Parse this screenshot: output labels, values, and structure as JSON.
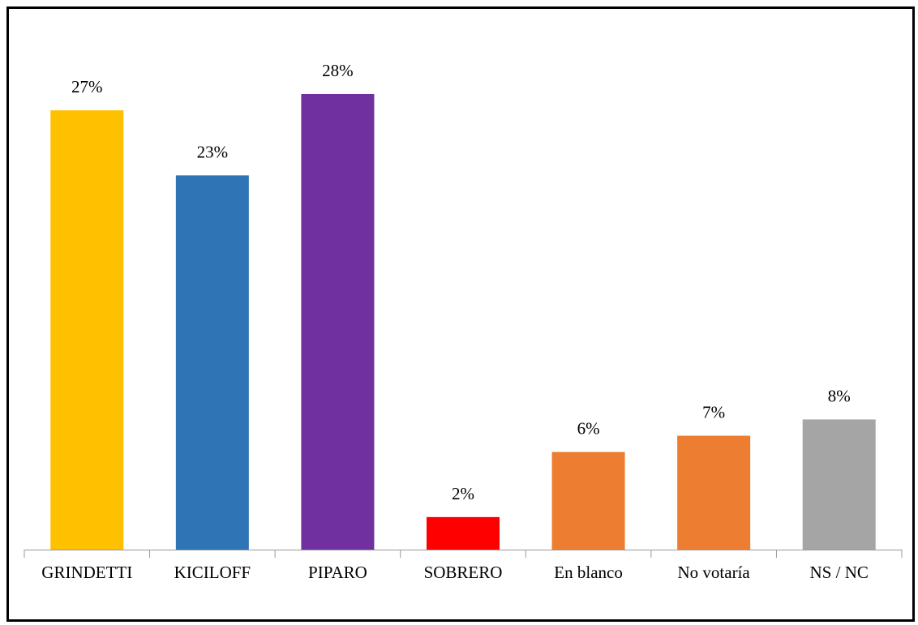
{
  "chart_data": {
    "type": "bar",
    "categories": [
      "GRINDETTI",
      "KICILOFF",
      "PIPARO",
      "SOBRERO",
      "En blanco",
      "No votaría",
      "NS / NC"
    ],
    "values": [
      27,
      23,
      28,
      2,
      6,
      7,
      8
    ],
    "value_labels": [
      "27%",
      "23%",
      "28%",
      "2%",
      "6%",
      "7%",
      "8%"
    ],
    "colors": [
      "#ffc000",
      "#2e75b6",
      "#7030a0",
      "#ff0000",
      "#ed7d31",
      "#ed7d31",
      "#a5a5a5"
    ]
  }
}
